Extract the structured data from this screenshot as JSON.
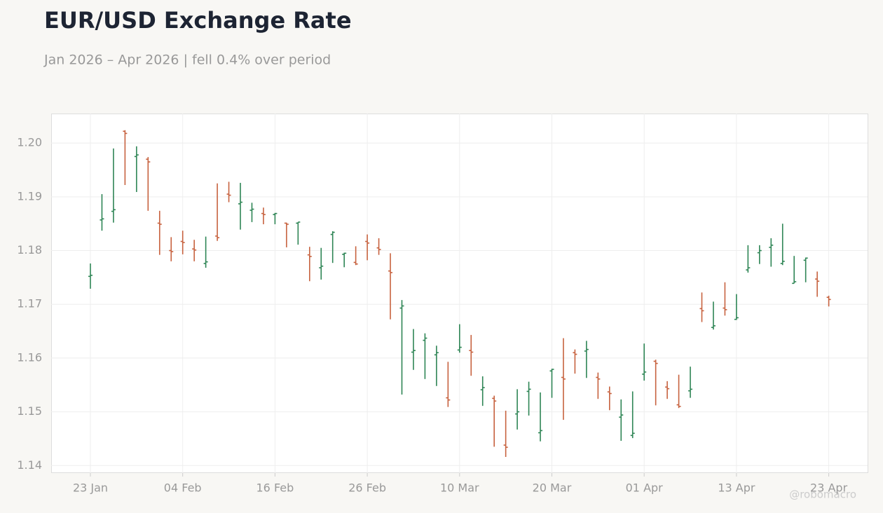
{
  "chart_data": {
    "type": "ohlc",
    "title": "EUR/USD Exchange Rate",
    "subtitle": "Jan 2026 – Apr 2026 | fell 0.4% over period",
    "watermark": "@robomacro",
    "categories": [
      "23 Jan",
      null,
      null,
      null,
      null,
      null,
      null,
      null,
      "04 Feb",
      null,
      null,
      null,
      null,
      null,
      null,
      null,
      "16 Feb",
      null,
      null,
      null,
      null,
      null,
      null,
      null,
      "26 Feb",
      null,
      null,
      null,
      null,
      null,
      null,
      null,
      "10 Mar",
      null,
      null,
      null,
      null,
      null,
      null,
      null,
      "20 Mar",
      null,
      null,
      null,
      null,
      null,
      null,
      null,
      "01 Apr",
      null,
      null,
      null,
      null,
      null,
      null,
      null,
      "13 Apr",
      null,
      null,
      null,
      null,
      null,
      null,
      null,
      "23 Apr"
    ],
    "open": [
      1.1752,
      1.1857,
      1.1873,
      1.2022,
      1.1975,
      1.197,
      1.1851,
      1.18,
      1.1817,
      1.1803,
      1.1776,
      1.1827,
      1.1905,
      1.1887,
      1.1875,
      1.1869,
      1.1867,
      1.1851,
      1.1851,
      1.1792,
      1.1768,
      1.183,
      1.1793,
      1.1778,
      1.1817,
      1.1805,
      1.1762,
      1.1693,
      1.1611,
      1.1633,
      1.1606,
      1.1526,
      1.1615,
      1.1614,
      1.1541,
      1.1525,
      1.1438,
      1.1496,
      1.1538,
      1.1461,
      1.1576,
      1.1564,
      1.161,
      1.1613,
      1.1564,
      1.1537,
      1.149,
      1.1456,
      1.157,
      1.1594,
      1.1546,
      1.1513,
      1.1539,
      1.1692,
      1.1657,
      1.1693,
      1.1672,
      1.1764,
      1.1796,
      1.1806,
      1.1776,
      1.1739,
      1.1782,
      1.1747,
      1.1713
    ],
    "high": [
      1.1776,
      1.1905,
      1.199,
      1.2024,
      1.1994,
      1.1974,
      1.1874,
      1.1825,
      1.1837,
      1.182,
      1.1826,
      1.1925,
      1.1928,
      1.1926,
      1.1889,
      1.188,
      1.187,
      1.1852,
      1.1853,
      1.1807,
      1.1805,
      1.1836,
      1.1796,
      1.1808,
      1.183,
      1.1823,
      1.1795,
      1.1708,
      1.1654,
      1.1646,
      1.1623,
      1.1593,
      1.1663,
      1.1643,
      1.1566,
      1.153,
      1.1502,
      1.1542,
      1.1556,
      1.1536,
      1.158,
      1.1637,
      1.1616,
      1.1632,
      1.1573,
      1.1547,
      1.1523,
      1.1538,
      1.1627,
      1.1597,
      1.1557,
      1.1569,
      1.1584,
      1.1722,
      1.1705,
      1.1741,
      1.1719,
      1.181,
      1.181,
      1.1823,
      1.185,
      1.179,
      1.1787,
      1.1761,
      1.1716
    ],
    "low": [
      1.1729,
      1.1837,
      1.1852,
      1.1922,
      1.1909,
      1.1874,
      1.1792,
      1.178,
      1.1793,
      1.178,
      1.1768,
      1.1818,
      1.189,
      1.1839,
      1.1853,
      1.1849,
      1.1849,
      1.1806,
      1.1811,
      1.1743,
      1.1746,
      1.1777,
      1.1769,
      1.1773,
      1.1782,
      1.1792,
      1.1672,
      1.1532,
      1.1578,
      1.1561,
      1.1548,
      1.1509,
      1.161,
      1.1567,
      1.1511,
      1.1435,
      1.1416,
      1.1467,
      1.1493,
      1.1445,
      1.1526,
      1.1485,
      1.1571,
      1.1563,
      1.1524,
      1.1503,
      1.1446,
      1.1451,
      1.1558,
      1.1512,
      1.1524,
      1.1507,
      1.1526,
      1.1667,
      1.1653,
      1.1679,
      1.1671,
      1.1759,
      1.1775,
      1.177,
      1.1773,
      1.1739,
      1.1741,
      1.1714,
      1.1696
    ],
    "close": [
      1.1754,
      1.1859,
      1.1876,
      1.2018,
      1.1978,
      1.1965,
      1.1849,
      1.1798,
      1.1815,
      1.1801,
      1.1779,
      1.1824,
      1.1903,
      1.189,
      1.1877,
      1.1867,
      1.1869,
      1.1849,
      1.1853,
      1.1789,
      1.1771,
      1.1834,
      1.1795,
      1.1775,
      1.1814,
      1.1802,
      1.1759,
      1.1697,
      1.1614,
      1.1637,
      1.161,
      1.1522,
      1.162,
      1.1611,
      1.1545,
      1.152,
      1.1434,
      1.15,
      1.1542,
      1.1465,
      1.1579,
      1.1561,
      1.1607,
      1.1616,
      1.1561,
      1.1534,
      1.1494,
      1.146,
      1.1574,
      1.159,
      1.1543,
      1.151,
      1.1542,
      1.1688,
      1.166,
      1.169,
      1.1675,
      1.1768,
      1.18,
      1.181,
      1.178,
      1.1742,
      1.1786,
      1.1743,
      1.1709
    ],
    "up_color": "#2e8555",
    "down_color": "#c7623f",
    "ylim": [
      1.1386,
      1.2055
    ],
    "yticks": [
      1.14,
      1.15,
      1.16,
      1.17,
      1.18,
      1.19,
      {
        "value": 1.2,
        "label": "1.20"
      }
    ],
    "grid": true
  }
}
